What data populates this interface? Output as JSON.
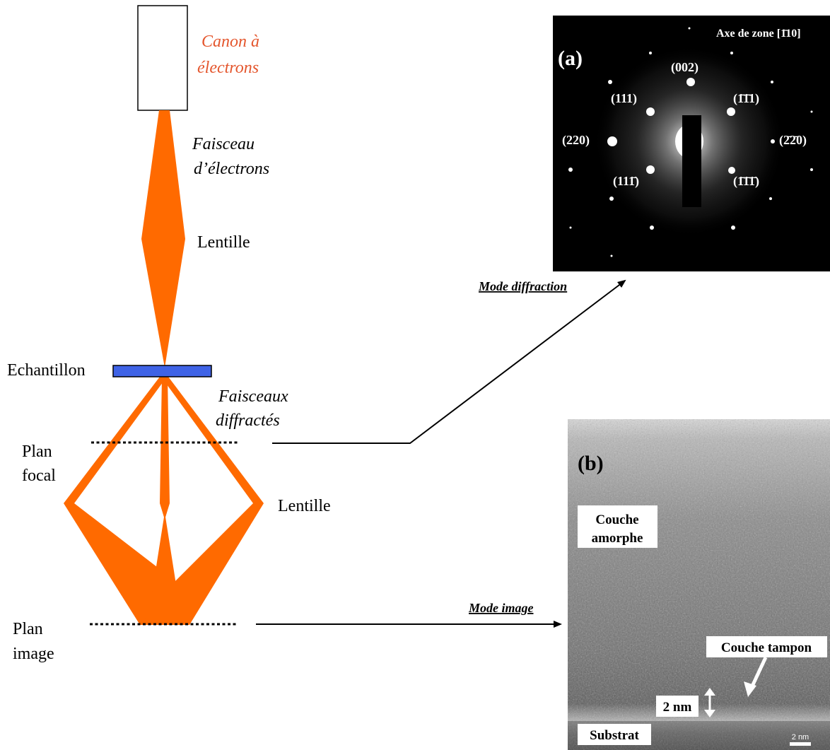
{
  "colors": {
    "beam": "#ff6a00",
    "sample": "#3f63e6",
    "gun_label": "#e4562d",
    "diffraction_bg": "#000000",
    "spot": "#ffffff"
  },
  "labels": {
    "gun_line1": "Canon à",
    "gun_line2": "électrons",
    "beam_line1": "Faisceau",
    "beam_line2": "d’électrons",
    "lens_upper": "Lentille",
    "sample": "Echantillon",
    "diffracted_line1": "Faisceaux",
    "diffracted_line2": "diffractés",
    "focal_line1": "Plan",
    "focal_line2": "focal",
    "lens_lower": "Lentille",
    "image_line1": "Plan",
    "image_line2": "image",
    "mode_diffraction": "Mode diffraction",
    "mode_image": "Mode image"
  },
  "panel_a": {
    "tag": "(a)",
    "zone_axis": "Axe de zone [1̄10]",
    "spots": {
      "s002": "(002)",
      "s111": "(111)",
      "s_1b1b1": "(1̄1̄1)",
      "s220": "(220)",
      "s_2b2b0": "(2̄2̄0)",
      "s111b": "(111̄)",
      "s_1b1b1b": "(1̄1̄1̄)"
    }
  },
  "panel_b": {
    "tag": "(b)",
    "amorphous_line1": "Couche",
    "amorphous_line2": "amorphe",
    "buffer": "Couche tampon",
    "thickness": "2 nm",
    "substrate": "Substrat",
    "scale_bar": "2 nm"
  }
}
